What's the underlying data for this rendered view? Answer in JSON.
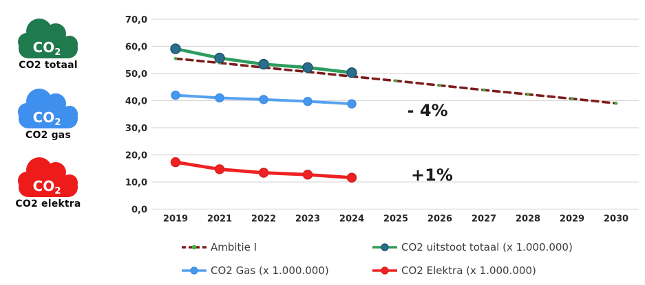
{
  "sidebar": {
    "items": [
      {
        "label": "CO2 totaal",
        "cloud_text": "CO",
        "cloud_sub": "2",
        "color": "#1f7a4d"
      },
      {
        "label": "CO2 gas",
        "cloud_text": "CO",
        "cloud_sub": "2",
        "color": "#3f8fee"
      },
      {
        "label": "CO2 elektra",
        "cloud_text": "CO",
        "cloud_sub": "2",
        "color": "#ee1b1b"
      }
    ]
  },
  "chart_data": {
    "type": "line",
    "title": "",
    "categories": [
      "2019",
      "2021",
      "2022",
      "2023",
      "2024",
      "2025",
      "2026",
      "2027",
      "2028",
      "2029",
      "2030"
    ],
    "ylim": [
      0,
      70
    ],
    "ytick_step": 10,
    "ytick_labels": [
      "0,0",
      "10,0",
      "20,0",
      "30,0",
      "40,0",
      "50,0",
      "60,0",
      "70,0"
    ],
    "grid": true,
    "legend_position": "bottom",
    "series": [
      {
        "name": "Ambitie I",
        "style": "dashed",
        "color": "#7d1d1d",
        "marker_color": "#3fb33f",
        "marker_stroke": "none",
        "values": [
          55.5,
          53.9,
          52.2,
          50.6,
          48.9,
          47.3,
          45.6,
          43.9,
          42.3,
          40.7,
          39.0
        ]
      },
      {
        "name": "CO2 uitstoot totaal (x 1.000.000)",
        "style": "solid",
        "color": "#2e9c5e",
        "marker_color": "#2a6e8e",
        "marker_stroke": "#1c4e66",
        "values": [
          59.1,
          55.7,
          53.4,
          52.2,
          50.3,
          null,
          null,
          null,
          null,
          null,
          null
        ]
      },
      {
        "name": "CO2 Gas (x 1.000.000)",
        "style": "solid",
        "color": "#55a1f0",
        "marker_color": "#4697ee",
        "marker_stroke": "#3e8ce2",
        "values": [
          42.0,
          41.0,
          40.4,
          39.7,
          38.8,
          null,
          null,
          null,
          null,
          null,
          null
        ]
      },
      {
        "name": "CO2 Elektra (x 1.000.000)",
        "style": "solid",
        "color": "#ee2222",
        "marker_color": "#ee2222",
        "marker_stroke": "#d61d1d",
        "values": [
          17.3,
          14.7,
          13.4,
          12.7,
          11.6,
          null,
          null,
          null,
          null,
          null,
          null
        ]
      }
    ],
    "annotations": [
      {
        "text": "- 4%",
        "x_index": 5.72,
        "value": 36.3
      },
      {
        "text": "+1%",
        "x_index": 5.82,
        "value": 12.5
      }
    ],
    "colors": {
      "gridline": "#d9d9d9",
      "tick_text": "#262626",
      "annotation_text": "#1a1a1a",
      "legend_text": "#3d3d3d"
    }
  }
}
